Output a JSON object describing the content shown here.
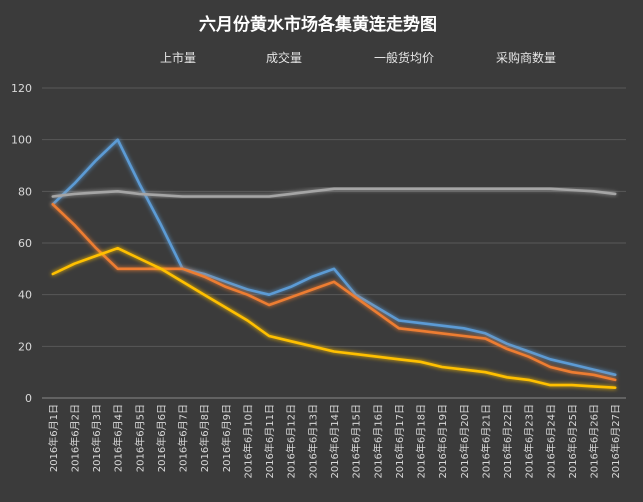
{
  "chart_data": {
    "type": "line",
    "title": "六月份黄水市场各集黄连走势图",
    "xlabel": "",
    "ylabel": "",
    "ylim": [
      0,
      120
    ],
    "yticks": [
      0,
      20,
      40,
      60,
      80,
      100,
      120
    ],
    "grid": true,
    "legend": "top",
    "categories": [
      "2016年6月1日",
      "2016年6月2日",
      "2016年6月3日",
      "2016年6月4日",
      "2016年6月5日",
      "2016年6月6日",
      "2016年6月7日",
      "2016年6月8日",
      "2016年6月9日",
      "2016年6月10日",
      "2016年6月11日",
      "2016年6月12日",
      "2016年6月13日",
      "2016年6月14日",
      "2016年6月15日",
      "2016年6月16日",
      "2016年6月17日",
      "2016年6月18日",
      "2016年6月19日",
      "2016年6月20日",
      "2016年6月21日",
      "2016年6月22日",
      "2016年6月23日",
      "2016年6月24日",
      "2016年6月25日",
      "2016年6月26日",
      "2016年6月27日"
    ],
    "series": [
      {
        "name": "上市量",
        "color": "#5b9bd5",
        "values": [
          75,
          83,
          92,
          100,
          83,
          67,
          50,
          48,
          45,
          42,
          40,
          43,
          47,
          50,
          40,
          35,
          30,
          29,
          28,
          27,
          25,
          21,
          18,
          15,
          13,
          11,
          9
        ]
      },
      {
        "name": "成交量",
        "color": "#ed7d31",
        "values": [
          75,
          67,
          58,
          50,
          50,
          50,
          50,
          47,
          43,
          40,
          36,
          39,
          42,
          45,
          39,
          33,
          27,
          26,
          25,
          24,
          23,
          19,
          16,
          12,
          10,
          9,
          7
        ]
      },
      {
        "name": "一般货均价",
        "color": "#a5a5a5",
        "values": [
          78,
          79,
          79.5,
          80,
          79,
          78.5,
          78,
          78,
          78,
          78,
          78,
          79,
          80,
          81,
          81,
          81,
          81,
          81,
          81,
          81,
          81,
          81,
          81,
          81,
          80.5,
          80,
          79
        ]
      },
      {
        "name": "采购商数量",
        "color": "#ffc000",
        "values": [
          48,
          52,
          55,
          58,
          54,
          50,
          45,
          40,
          35,
          30,
          24,
          22,
          20,
          18,
          17,
          16,
          15,
          14,
          12,
          11,
          10,
          8,
          7,
          5,
          5,
          4.5,
          4
        ]
      }
    ]
  }
}
